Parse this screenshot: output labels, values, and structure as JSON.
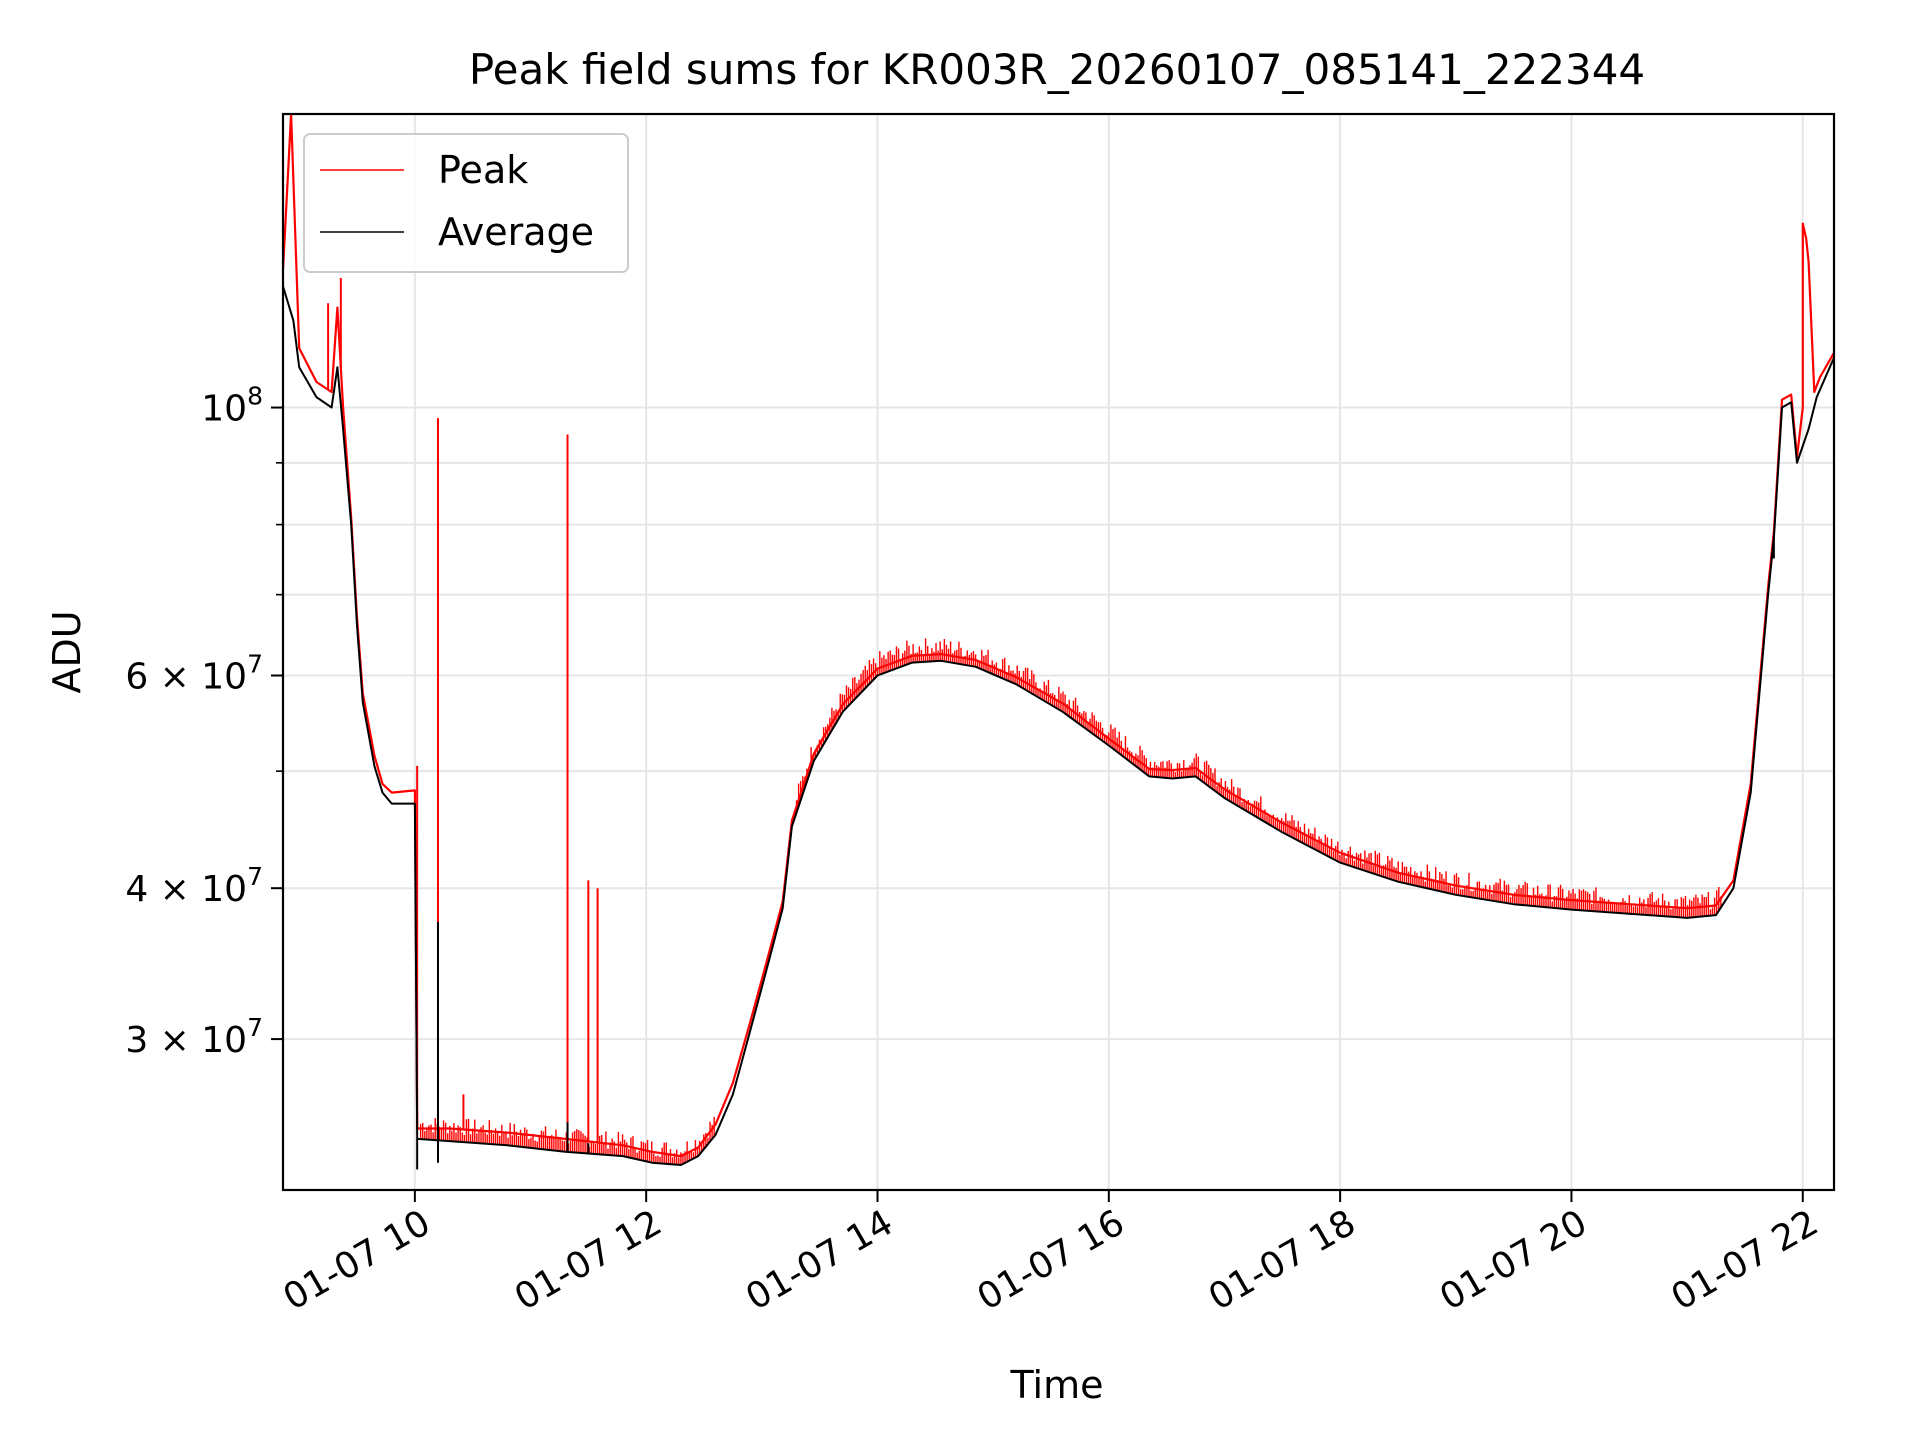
{
  "chart_data": {
    "type": "line",
    "title": "Peak field sums for KR003R_20260107_085141_222344",
    "xlabel": "Time",
    "ylabel": "ADU",
    "x_ticks": [
      "01-07 10",
      "01-07 12",
      "01-07 14",
      "01-07 16",
      "01-07 18",
      "01-07 20",
      "01-07 22"
    ],
    "x_tick_hours": [
      10,
      12,
      14,
      16,
      18,
      20,
      22
    ],
    "xlim_hours": [
      8.86,
      22.27
    ],
    "ylim": [
      22500000,
      175000000
    ],
    "yscale": "log",
    "y_ticks": [
      {
        "value": 100000000,
        "mantissa": "",
        "base": "10",
        "exp": "8"
      },
      {
        "value": 60000000,
        "mantissa": "6 × ",
        "base": "10",
        "exp": "7"
      },
      {
        "value": 40000000,
        "mantissa": "4 × ",
        "base": "10",
        "exp": "7"
      },
      {
        "value": 30000000,
        "mantissa": "3 × ",
        "base": "10",
        "exp": "7"
      }
    ],
    "y_minor_grid": [
      20000000,
      50000000,
      70000000,
      80000000,
      90000000
    ],
    "grid": true,
    "legend_position": "top-left",
    "colors": {
      "peak": "#ff0000",
      "average": "#000000"
    },
    "series": [
      {
        "name": "Average",
        "color": "#000000",
        "points": [
          [
            8.86,
            126000000
          ],
          [
            8.95,
            118000000
          ],
          [
            9.0,
            108000000
          ],
          [
            9.15,
            102000000
          ],
          [
            9.28,
            100000000
          ],
          [
            9.33,
            108000000
          ],
          [
            9.38,
            96000000
          ],
          [
            9.45,
            80000000
          ],
          [
            9.5,
            66000000
          ],
          [
            9.55,
            57000000
          ],
          [
            9.65,
            50500000
          ],
          [
            9.72,
            48000000
          ],
          [
            9.8,
            47000000
          ],
          [
            10.0,
            47000000
          ],
          [
            10.02,
            24800000
          ],
          [
            10.3,
            24700000
          ],
          [
            10.8,
            24500000
          ],
          [
            11.3,
            24200000
          ],
          [
            11.8,
            24000000
          ],
          [
            12.05,
            23700000
          ],
          [
            12.3,
            23600000
          ],
          [
            12.45,
            24000000
          ],
          [
            12.6,
            25000000
          ],
          [
            12.75,
            27000000
          ],
          [
            12.9,
            30500000
          ],
          [
            13.05,
            34500000
          ],
          [
            13.18,
            38500000
          ],
          [
            13.26,
            45000000
          ],
          [
            13.45,
            51000000
          ],
          [
            13.7,
            56000000
          ],
          [
            14.0,
            60000000
          ],
          [
            14.3,
            61500000
          ],
          [
            14.55,
            61700000
          ],
          [
            14.85,
            61000000
          ],
          [
            15.2,
            59000000
          ],
          [
            15.6,
            56000000
          ],
          [
            16.0,
            52500000
          ],
          [
            16.35,
            49500000
          ],
          [
            16.55,
            49300000
          ],
          [
            16.75,
            49500000
          ],
          [
            17.0,
            47500000
          ],
          [
            17.5,
            44500000
          ],
          [
            18.0,
            42000000
          ],
          [
            18.5,
            40500000
          ],
          [
            19.0,
            39500000
          ],
          [
            19.5,
            38800000
          ],
          [
            20.0,
            38400000
          ],
          [
            20.5,
            38100000
          ],
          [
            21.0,
            37800000
          ],
          [
            21.25,
            38000000
          ],
          [
            21.4,
            40000000
          ],
          [
            21.55,
            48000000
          ],
          [
            21.7,
            70000000
          ],
          [
            21.75,
            78000000
          ],
          [
            21.82,
            100000000
          ],
          [
            21.9,
            101000000
          ],
          [
            21.95,
            90000000
          ],
          [
            22.05,
            96000000
          ],
          [
            22.12,
            102000000
          ],
          [
            22.27,
            110000000
          ]
        ]
      },
      {
        "name": "Peak",
        "color": "#ff0000",
        "points": [
          [
            8.86,
            130000000
          ],
          [
            8.93,
            175000000
          ],
          [
            9.0,
            112000000
          ],
          [
            9.15,
            105000000
          ],
          [
            9.28,
            103000000
          ],
          [
            9.33,
            121000000
          ],
          [
            9.38,
            100000000
          ],
          [
            9.45,
            81000000
          ],
          [
            9.5,
            67000000
          ],
          [
            9.55,
            58000000
          ],
          [
            9.65,
            51500000
          ],
          [
            9.72,
            48800000
          ],
          [
            9.8,
            48000000
          ],
          [
            10.0,
            48200000
          ],
          [
            10.02,
            25300000
          ],
          [
            10.3,
            25300000
          ],
          [
            10.8,
            25100000
          ],
          [
            11.3,
            24800000
          ],
          [
            11.8,
            24500000
          ],
          [
            12.05,
            24200000
          ],
          [
            12.3,
            24000000
          ],
          [
            12.45,
            24400000
          ],
          [
            12.6,
            25500000
          ],
          [
            12.75,
            27600000
          ],
          [
            12.9,
            31000000
          ],
          [
            13.05,
            35000000
          ],
          [
            13.18,
            39000000
          ],
          [
            13.26,
            45500000
          ],
          [
            13.45,
            51700000
          ],
          [
            13.7,
            56800000
          ],
          [
            14.0,
            60800000
          ],
          [
            14.3,
            62300000
          ],
          [
            14.55,
            62500000
          ],
          [
            14.85,
            61800000
          ],
          [
            15.2,
            59800000
          ],
          [
            15.6,
            56900000
          ],
          [
            16.0,
            53200000
          ],
          [
            16.35,
            50200000
          ],
          [
            16.55,
            50100000
          ],
          [
            16.75,
            50300000
          ],
          [
            17.0,
            48300000
          ],
          [
            17.5,
            45300000
          ],
          [
            18.0,
            42800000
          ],
          [
            18.5,
            41200000
          ],
          [
            19.0,
            40200000
          ],
          [
            19.5,
            39500000
          ],
          [
            20.0,
            39100000
          ],
          [
            20.5,
            38800000
          ],
          [
            21.0,
            38500000
          ],
          [
            21.25,
            38700000
          ],
          [
            21.4,
            40600000
          ],
          [
            21.55,
            48800000
          ],
          [
            21.7,
            71000000
          ],
          [
            21.75,
            79000000
          ],
          [
            21.82,
            101500000
          ],
          [
            21.9,
            102500000
          ],
          [
            21.95,
            91000000
          ],
          [
            22.0,
            100000000
          ],
          [
            22.0,
            142000000
          ],
          [
            22.03,
            138000000
          ],
          [
            22.05,
            132000000
          ],
          [
            22.1,
            103000000
          ],
          [
            22.15,
            106000000
          ],
          [
            22.27,
            111000000
          ]
        ]
      }
    ],
    "peak_spikes": [
      {
        "x": 9.25,
        "y": 122000000
      },
      {
        "x": 9.36,
        "y": 128000000
      },
      {
        "x": 10.02,
        "y": 50500000
      },
      {
        "x": 10.2,
        "y": 98000000
      },
      {
        "x": 10.42,
        "y": 27000000
      },
      {
        "x": 11.32,
        "y": 95000000
      },
      {
        "x": 11.5,
        "y": 40600000
      },
      {
        "x": 11.58,
        "y": 40000000
      }
    ],
    "average_dips": [
      {
        "x": 10.02,
        "y": 23400000
      },
      {
        "x": 10.2,
        "y": 37500000
      },
      {
        "x": 10.2,
        "y": 23700000
      },
      {
        "x": 11.32,
        "y": 25600000
      },
      {
        "x": 11.5,
        "y": 24600000
      },
      {
        "x": 21.75,
        "y": 75000000
      }
    ]
  }
}
